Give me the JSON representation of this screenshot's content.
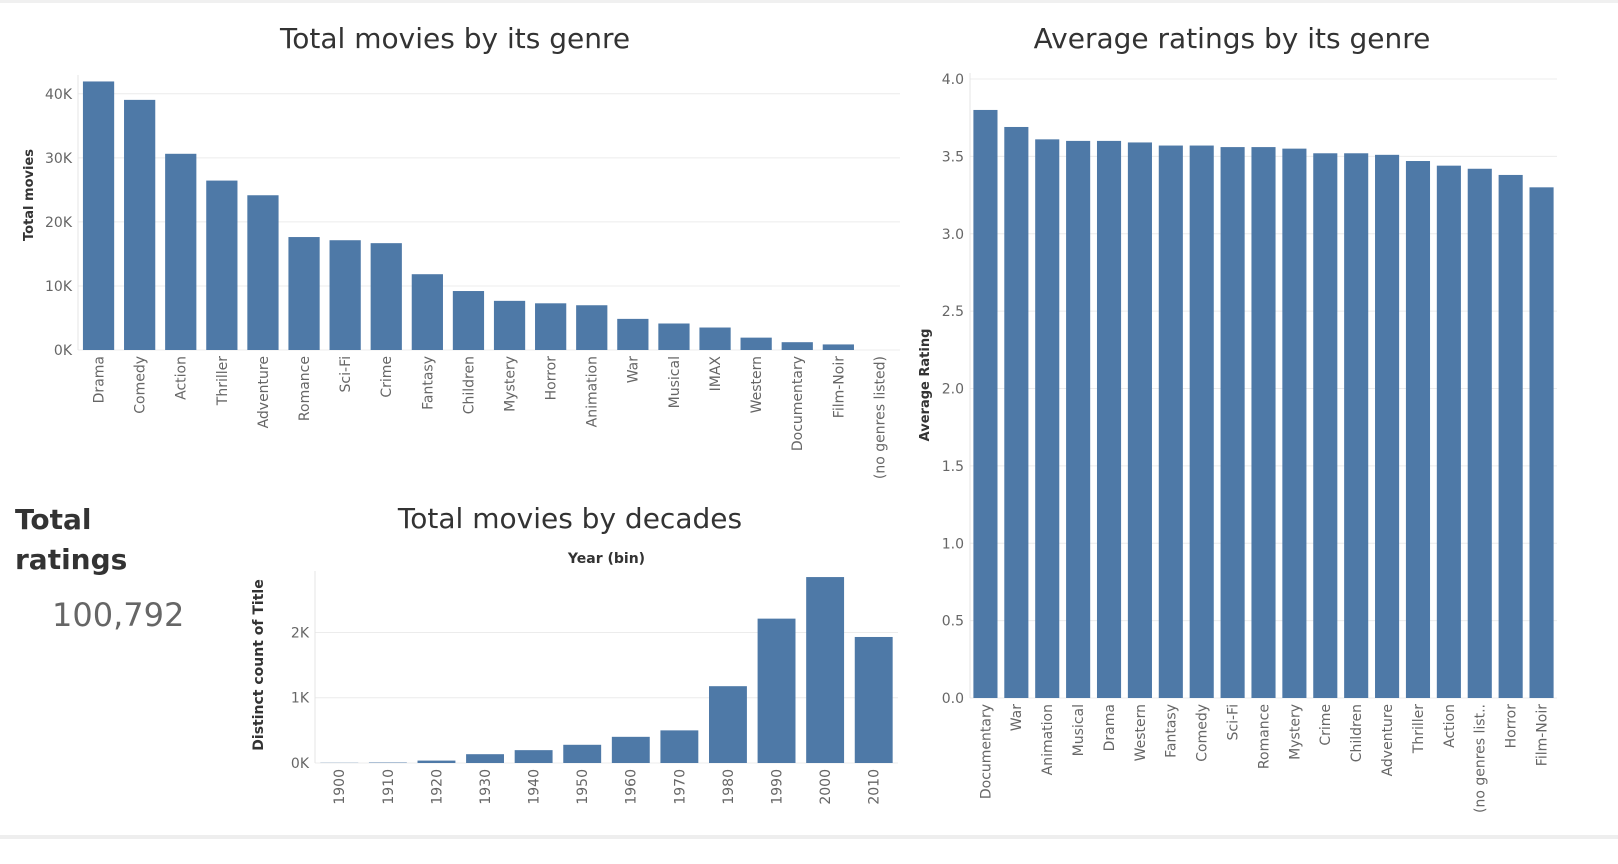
{
  "kpi": {
    "title": "Total ratings",
    "value": "100,792"
  },
  "colors": {
    "bar": "#4e79a7",
    "grid": "#ececec",
    "axis_text": "#666666",
    "title_text": "#333333"
  },
  "chart_data": [
    {
      "id": "genre_count",
      "type": "bar",
      "title": "Total movies by its genre",
      "xlabel": "",
      "ylabel": "Total movies",
      "categories": [
        "Drama",
        "Comedy",
        "Action",
        "Thriller",
        "Adventure",
        "Romance",
        "Sci-Fi",
        "Crime",
        "Fantasy",
        "Children",
        "Mystery",
        "Horror",
        "Animation",
        "War",
        "Musical",
        "IMAX",
        "Western",
        "Documentary",
        "Film-Noir",
        "(no genres listed)"
      ],
      "values": [
        41928,
        39053,
        30635,
        26452,
        24161,
        17636,
        17140,
        16681,
        11834,
        9208,
        7674,
        7291,
        6988,
        4859,
        4138,
        3510,
        1930,
        1219,
        870,
        0
      ],
      "ylim": [
        0,
        42000
      ],
      "yticks": [
        0,
        10000,
        20000,
        30000,
        40000
      ],
      "ytick_labels": [
        "0K",
        "10K",
        "20K",
        "30K",
        "40K"
      ],
      "grid": true
    },
    {
      "id": "genre_rating",
      "type": "bar",
      "title": "Average ratings by its genre",
      "xlabel": "",
      "ylabel": "Average Rating",
      "categories": [
        "Documentary",
        "War",
        "Animation",
        "Musical",
        "Drama",
        "Western",
        "Fantasy",
        "Comedy",
        "Sci-Fi",
        "Romance",
        "Mystery",
        "Crime",
        "Children",
        "Adventure",
        "Thriller",
        "Action",
        "(no genres list..",
        "Horror",
        "Film-Noir"
      ],
      "values": [
        3.8,
        3.69,
        3.61,
        3.6,
        3.6,
        3.59,
        3.57,
        3.57,
        3.56,
        3.56,
        3.55,
        3.52,
        3.52,
        3.51,
        3.47,
        3.44,
        3.42,
        3.38,
        3.3
      ],
      "ylim": [
        0,
        4.0
      ],
      "yticks": [
        0,
        0.5,
        1.0,
        1.5,
        2.0,
        2.5,
        3.0,
        3.5,
        4.0
      ],
      "ytick_labels": [
        "0.0",
        "0.5",
        "1.0",
        "1.5",
        "2.0",
        "2.5",
        "3.0",
        "3.5",
        "4.0"
      ],
      "grid": true
    },
    {
      "id": "decades",
      "type": "bar",
      "title": "Total movies by decades",
      "xlabel": "Year (bin)",
      "ylabel": "Distinct count of Title",
      "categories": [
        "1900",
        "1910",
        "1920",
        "1930",
        "1940",
        "1950",
        "1960",
        "1970",
        "1980",
        "1990",
        "2000",
        "2010"
      ],
      "values": [
        3,
        7,
        37,
        135,
        197,
        279,
        401,
        500,
        1177,
        2212,
        2849,
        1931
      ],
      "ylim": [
        0,
        2850
      ],
      "yticks": [
        0,
        1000,
        2000
      ],
      "ytick_labels": [
        "0K",
        "1K",
        "2K"
      ],
      "grid": true
    }
  ]
}
